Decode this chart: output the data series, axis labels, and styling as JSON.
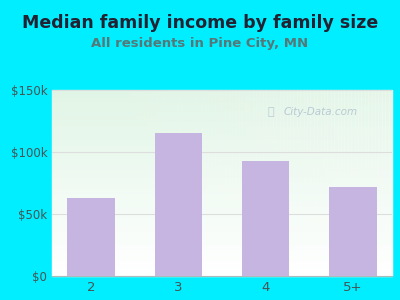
{
  "title": "Median family income by family size",
  "subtitle": "All residents in Pine City, MN",
  "categories": [
    "2",
    "3",
    "4",
    "5+"
  ],
  "values": [
    63000,
    115000,
    93000,
    72000
  ],
  "bar_color": "#c5b5e0",
  "background_color": "#00eeff",
  "title_color": "#222233",
  "subtitle_color": "#557777",
  "tick_color": "#445555",
  "ylim": [
    0,
    150000
  ],
  "yticks": [
    0,
    50000,
    100000,
    150000
  ],
  "ytick_labels": [
    "$0",
    "$50k",
    "$100k",
    "$150k"
  ],
  "title_fontsize": 12.5,
  "subtitle_fontsize": 9.5,
  "watermark": "City-Data.com",
  "watermark_color": "#aabbcc",
  "plot_bg_colors": [
    "#ffffff",
    "#e8f5e9"
  ],
  "grid_color": "#dddddd"
}
